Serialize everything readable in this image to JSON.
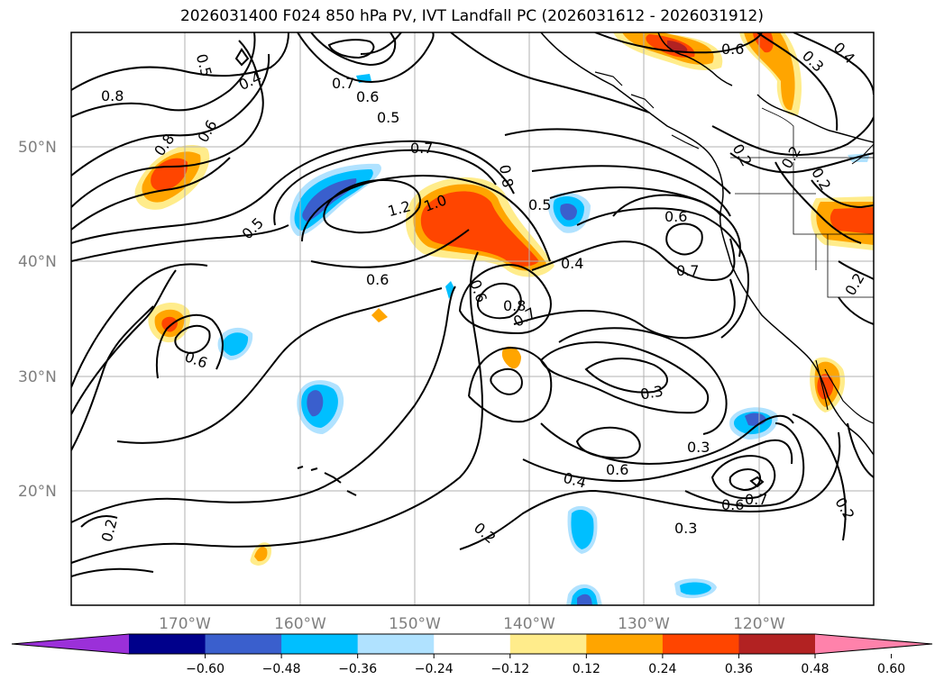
{
  "title": "2026031400 F024 850 hPa PV, IVT Landfall PC (2026031612 - 2026031912)",
  "map": {
    "lat_labels": [
      "50°N",
      "40°N",
      "30°N",
      "20°N"
    ],
    "lon_labels": [
      "170°W",
      "160°W",
      "150°W",
      "140°W",
      "130°W",
      "120°W"
    ],
    "contour_labels": [
      "0.8",
      "0.8",
      "0.6",
      "0.5",
      "0.4",
      "0.7",
      "0.6",
      "0.5",
      "0.7",
      "1.2",
      "1.0",
      "0.8",
      "0.5",
      "0.6",
      "0.4",
      "0.7",
      "0.6",
      "0.6",
      "0.8",
      "0.7",
      "0.5",
      "0.6",
      "0.3",
      "0.3",
      "0.6",
      "0.4",
      "0.6",
      "0.7",
      "0.3",
      "0.2",
      "0.2",
      "0.2",
      "0.2",
      "0.3",
      "0.4",
      "0.2",
      "0.2",
      "0.2",
      "0.6"
    ],
    "colors": {
      "grid": "#b0b0b0",
      "contour": "#000000",
      "coast": "#000000"
    }
  },
  "colorbar": {
    "ticks": [
      "−0.60",
      "−0.48",
      "−0.36",
      "−0.24",
      "−0.12",
      "0.12",
      "0.24",
      "0.36",
      "0.48",
      "0.60"
    ],
    "colors": [
      "#9b30d9",
      "#00008b",
      "#3a5fcd",
      "#00bfff",
      "#b0e2ff",
      "#ffffff",
      "#ffec8b",
      "#ffa500",
      "#ff4500",
      "#b22222",
      "#ff82ab"
    ]
  }
}
